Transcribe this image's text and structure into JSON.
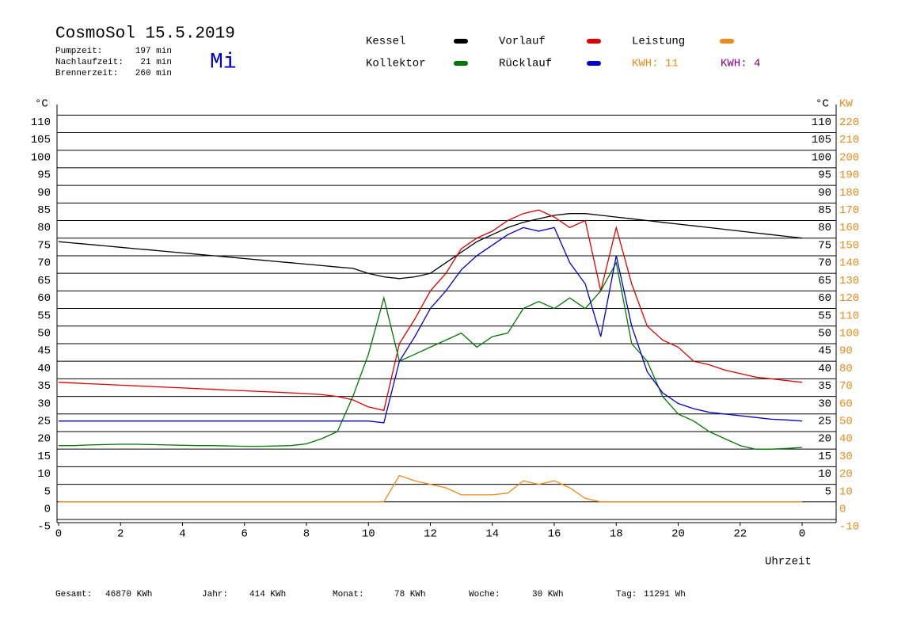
{
  "chart_data": {
    "type": "line",
    "title": "CosmoSol 15.5.2019",
    "stats": [
      {
        "label": "Pumpzeit:",
        "value": "197 min"
      },
      {
        "label": "Nachlaufzeit:",
        "value": "21 min"
      },
      {
        "label": "Brennerzeit:",
        "value": "260 min"
      }
    ],
    "weekday": "Mi",
    "kwh_labels": [
      {
        "text": "KWH: 11",
        "color": "#e88a1a"
      },
      {
        "text": "KWH: 4",
        "color": "#800080"
      }
    ],
    "footer": [
      {
        "label": "Gesamt:",
        "value": "46870 KWh"
      },
      {
        "label": "Jahr:",
        "value": "414 KWh"
      },
      {
        "label": "Monat:",
        "value": "78 KWh"
      },
      {
        "label": "Woche:",
        "value": "30 KWh"
      },
      {
        "label": "Tag:",
        "value": "11291 Wh"
      }
    ],
    "x_label": "Uhrzeit",
    "y_unit": "°C",
    "y2_unit": "KW",
    "xlim": [
      0,
      25.1
    ],
    "xticks": [
      0,
      2,
      4,
      6,
      8,
      10,
      12,
      14,
      16,
      18,
      20,
      22,
      {
        "value": 24,
        "label": "0"
      }
    ],
    "ylim": [
      -5,
      113
    ],
    "yticks": [
      -5,
      0,
      5,
      10,
      15,
      20,
      25,
      30,
      35,
      40,
      45,
      50,
      55,
      60,
      65,
      70,
      75,
      80,
      85,
      90,
      95,
      100,
      105,
      110
    ],
    "y_right_ticks": [
      5,
      10,
      15,
      20,
      25,
      30,
      35,
      40,
      45,
      50,
      55,
      60,
      65,
      70,
      75,
      80,
      85,
      90,
      95,
      100,
      105,
      110
    ],
    "y2lim": [
      -10,
      226
    ],
    "y2ticks": [
      -10,
      0,
      10,
      20,
      30,
      40,
      50,
      60,
      70,
      80,
      90,
      100,
      110,
      120,
      130,
      140,
      150,
      160,
      170,
      180,
      190,
      200,
      210,
      220
    ],
    "grid": true,
    "x": [
      0,
      0.5,
      1,
      1.5,
      2,
      2.5,
      3,
      3.5,
      4,
      4.5,
      5,
      5.5,
      6,
      6.5,
      7,
      7.5,
      8,
      8.5,
      9,
      9.5,
      10,
      10.5,
      11,
      11.5,
      12,
      12.5,
      13,
      13.5,
      14,
      14.5,
      15,
      15.5,
      16,
      16.5,
      17,
      17.5,
      18,
      18.5,
      19,
      19.5,
      20,
      20.5,
      21,
      21.5,
      22,
      22.5,
      23,
      23.5,
      24
    ],
    "series": [
      {
        "name": "Kessel",
        "color": "#000000",
        "values": [
          74,
          73.6,
          73.2,
          72.8,
          72.4,
          72,
          71.6,
          71.2,
          70.8,
          70.4,
          70,
          69.6,
          69.2,
          68.8,
          68.4,
          68,
          67.6,
          67.2,
          66.8,
          66.4,
          65,
          64,
          63.5,
          64,
          65,
          68,
          71,
          74,
          76,
          78,
          79.5,
          80.5,
          81.5,
          82,
          82,
          81.5,
          81,
          80.5,
          80,
          79.5,
          79,
          78.5,
          78,
          77.5,
          77,
          76.5,
          76,
          75.5,
          75
        ]
      },
      {
        "name": "Vorlauf",
        "color": "#dd0000",
        "values": [
          34,
          33.8,
          33.6,
          33.4,
          33.2,
          33,
          32.8,
          32.6,
          32.4,
          32.2,
          32,
          31.8,
          31.6,
          31.4,
          31.2,
          31,
          30.8,
          30.5,
          30,
          29,
          27,
          26,
          45,
          52,
          60,
          65,
          72,
          75,
          77,
          80,
          82,
          83,
          81,
          78,
          80,
          60,
          78,
          62,
          50,
          46,
          44,
          40,
          39,
          37.5,
          36.5,
          35.5,
          35,
          34.5,
          34
        ]
      },
      {
        "name": "Leistung",
        "color": "#f08a1a",
        "axis": "y2",
        "values": [
          0,
          0,
          0,
          0,
          0,
          0,
          0,
          0,
          0,
          0,
          0,
          0,
          0,
          0,
          0,
          0,
          0,
          0,
          0,
          0,
          0,
          0,
          15,
          12,
          10,
          8,
          4,
          4,
          4,
          5,
          12,
          10,
          12,
          8,
          2,
          0,
          0,
          0,
          0,
          0,
          0,
          0,
          0,
          0,
          0,
          0,
          0,
          0,
          0
        ]
      },
      {
        "name": "Kollektor",
        "color": "#007700",
        "values": [
          16,
          16,
          16.2,
          16.3,
          16.4,
          16.4,
          16.3,
          16.2,
          16.1,
          16,
          16,
          15.9,
          15.8,
          15.8,
          15.9,
          16,
          16.5,
          18,
          20,
          30,
          42,
          58,
          40,
          42,
          44,
          46,
          48,
          44,
          47,
          48,
          55,
          57,
          55,
          58,
          55,
          60,
          68,
          45,
          40,
          30,
          25,
          23,
          20,
          18,
          16,
          15,
          15,
          15.2,
          15.5
        ]
      },
      {
        "name": "Rücklauf",
        "color": "#0000cc",
        "values": [
          23,
          23,
          23,
          23,
          23,
          23,
          23,
          23,
          23,
          23,
          23,
          23,
          23,
          23,
          23,
          23,
          23,
          23,
          23,
          23,
          23,
          22.5,
          40,
          47,
          55,
          60,
          66,
          70,
          73,
          76,
          78,
          77,
          78,
          68,
          62,
          47,
          70,
          50,
          37,
          31,
          28,
          26.5,
          25.5,
          25,
          24.5,
          24,
          23.5,
          23.3,
          23
        ]
      }
    ]
  }
}
